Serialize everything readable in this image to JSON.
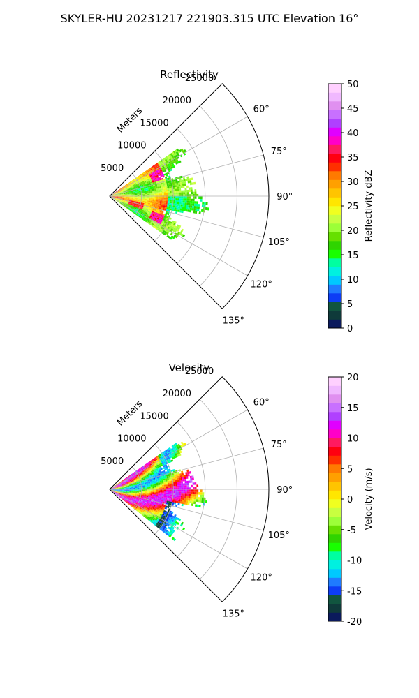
{
  "figure": {
    "suptitle": "SKYLER-HU  20231217  221903.315 UTC Elevation 16°"
  },
  "chart_data": [
    {
      "type": "heatmap",
      "projection": "polar-sector",
      "title": "Reflectivity",
      "range_label": "Meters",
      "range_ticks": [
        5000,
        10000,
        15000,
        20000,
        25000
      ],
      "rmax": 25000,
      "azimuth_range_deg": [
        45,
        135
      ],
      "azimuth_ticks": [
        "60°",
        "75°",
        "90°",
        "105°",
        "120°",
        "135°"
      ],
      "azimuth_tick_values": [
        60,
        75,
        90,
        105,
        120,
        135
      ],
      "grid": true,
      "colorbar": {
        "label": "Reflectivity dBZ",
        "vmin": 0,
        "vmax": 50,
        "ticks": [
          0,
          5,
          10,
          15,
          20,
          25,
          30,
          35,
          40,
          45,
          50
        ],
        "colors": [
          "#0b1a5c",
          "#0f3a3a",
          "#11553f",
          "#0d3df5",
          "#1f7bff",
          "#00c8ff",
          "#00f0e0",
          "#00ffa0",
          "#19ff00",
          "#2fd400",
          "#66e000",
          "#9cff38",
          "#c8ff40",
          "#f0ff20",
          "#ffe600",
          "#ffc400",
          "#ffa000",
          "#ff7a00",
          "#ff3000",
          "#ff0010",
          "#ff1a60",
          "#ff00c8",
          "#e000ff",
          "#b040ff",
          "#c870ff",
          "#e090f0",
          "#f0b8ff",
          "#ffd0ff"
        ]
      },
      "field": {
        "description": "Stronger echo (25–40 dBZ) close to radar with a red arc near 8000 m; 15–22 dBZ farther out to ~15000 m",
        "max_range": 15000,
        "az_span": [
          55,
          125
        ]
      }
    },
    {
      "type": "heatmap",
      "projection": "polar-sector",
      "title": "Velocity",
      "range_label": "Meters",
      "range_ticks": [
        5000,
        10000,
        15000,
        20000,
        25000
      ],
      "rmax": 25000,
      "azimuth_range_deg": [
        45,
        135
      ],
      "azimuth_ticks": [
        "60°",
        "75°",
        "90°",
        "105°",
        "120°",
        "135°"
      ],
      "azimuth_tick_values": [
        60,
        75,
        90,
        105,
        120,
        135
      ],
      "grid": true,
      "colorbar": {
        "label": "Velocity (m/s)",
        "vmin": -20,
        "vmax": 20,
        "ticks": [
          -20,
          -15,
          -10,
          -5,
          0,
          5,
          10,
          15,
          20
        ],
        "colors": [
          "#0b1a5c",
          "#0f3a3a",
          "#11553f",
          "#0d3df5",
          "#1f7bff",
          "#00c8ff",
          "#00f0e0",
          "#00ffa0",
          "#19ff00",
          "#2fd400",
          "#66e000",
          "#9cff38",
          "#c8ff40",
          "#f0ff20",
          "#ffe600",
          "#ffc400",
          "#ffa000",
          "#ff7a00",
          "#ff3000",
          "#ff0010",
          "#ff1a60",
          "#ff00c8",
          "#e000ff",
          "#b040ff",
          "#c870ff",
          "#e090f0",
          "#f0b8ff",
          "#ffd0ff"
        ]
      },
      "field": {
        "description": "Banded velocity pattern: magenta/red (+5 to +15 m/s) bands and cyan/green (-15 to -5 m/s) bands, extending to ~15000 m",
        "max_range": 15000,
        "az_span": [
          55,
          127
        ]
      }
    }
  ]
}
